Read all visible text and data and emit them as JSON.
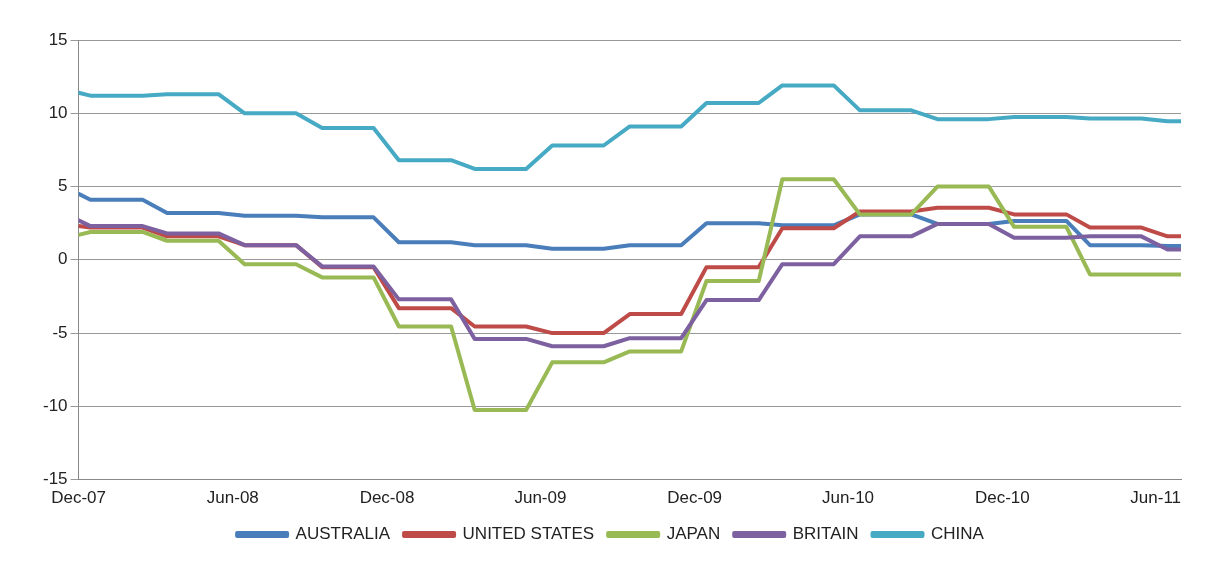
{
  "chart_data": {
    "type": "line",
    "x": [
      "2007-12-01",
      "2007-12-15",
      "2008-01-15",
      "2008-02-15",
      "2008-03-15",
      "2008-04-15",
      "2008-05-15",
      "2008-06-15",
      "2008-07-15",
      "2008-08-15",
      "2008-09-15",
      "2008-10-15",
      "2008-11-15",
      "2008-12-15",
      "2009-01-15",
      "2009-02-15",
      "2009-03-15",
      "2009-04-15",
      "2009-05-15",
      "2009-06-15",
      "2009-07-15",
      "2009-08-15",
      "2009-09-15",
      "2009-10-15",
      "2009-11-15",
      "2009-12-15",
      "2010-01-15",
      "2010-02-15",
      "2010-03-15",
      "2010-04-15",
      "2010-05-15",
      "2010-06-15",
      "2010-07-15",
      "2010-08-15",
      "2010-09-15",
      "2010-10-15",
      "2010-11-15",
      "2010-12-15",
      "2011-01-15",
      "2011-02-15",
      "2011-03-15",
      "2011-04-15",
      "2011-05-15",
      "2011-06-15",
      "2011-07-01"
    ],
    "series": [
      {
        "name": "AUSTRALIA",
        "color": "#4a7ebb",
        "values": [
          4.5,
          4.1,
          4.1,
          4.1,
          3.2,
          3.2,
          3.2,
          3.0,
          3.0,
          3.0,
          2.9,
          2.9,
          2.9,
          1.2,
          1.2,
          1.2,
          1.0,
          1.0,
          1.0,
          0.75,
          0.75,
          0.75,
          1.0,
          1.0,
          1.0,
          2.5,
          2.5,
          2.5,
          2.35,
          2.35,
          2.35,
          3.1,
          3.1,
          3.1,
          2.45,
          2.45,
          2.45,
          2.65,
          2.65,
          2.65,
          1.0,
          1.0,
          1.0,
          0.95,
          0.95
        ]
      },
      {
        "name": "UNITED STATES",
        "color": "#be4b48",
        "values": [
          2.3,
          2.2,
          2.2,
          2.2,
          1.6,
          1.6,
          1.6,
          1.0,
          1.0,
          1.0,
          -0.5,
          -0.5,
          -0.5,
          -3.3,
          -3.3,
          -3.3,
          -4.55,
          -4.55,
          -4.55,
          -5.0,
          -5.0,
          -5.0,
          -3.7,
          -3.7,
          -3.7,
          -0.5,
          -0.5,
          -0.5,
          2.15,
          2.15,
          2.15,
          3.3,
          3.3,
          3.3,
          3.55,
          3.55,
          3.55,
          3.1,
          3.1,
          3.1,
          2.2,
          2.2,
          2.2,
          1.6,
          1.6
        ]
      },
      {
        "name": "JAPAN",
        "color": "#98b954",
        "values": [
          1.7,
          1.9,
          1.9,
          1.9,
          1.3,
          1.3,
          1.3,
          -0.3,
          -0.3,
          -0.3,
          -1.2,
          -1.2,
          -1.2,
          -4.55,
          -4.55,
          -4.55,
          -10.25,
          -10.25,
          -10.25,
          -7.0,
          -7.0,
          -7.0,
          -6.25,
          -6.25,
          -6.25,
          -1.45,
          -1.45,
          -1.45,
          5.5,
          5.5,
          5.5,
          3.1,
          3.1,
          3.1,
          5.0,
          5.0,
          5.0,
          2.25,
          2.25,
          2.25,
          -1.0,
          -1.0,
          -1.0,
          -1.0,
          -1.0
        ]
      },
      {
        "name": "BRITAIN",
        "color": "#7d60a0",
        "values": [
          2.7,
          2.3,
          2.3,
          2.3,
          1.8,
          1.8,
          1.8,
          1.0,
          1.0,
          1.0,
          -0.45,
          -0.45,
          -0.45,
          -2.7,
          -2.7,
          -2.7,
          -5.4,
          -5.4,
          -5.4,
          -5.9,
          -5.9,
          -5.9,
          -5.35,
          -5.35,
          -5.35,
          -2.75,
          -2.75,
          -2.75,
          -0.3,
          -0.3,
          -0.3,
          1.6,
          1.6,
          1.6,
          2.45,
          2.45,
          2.45,
          1.5,
          1.5,
          1.5,
          1.6,
          1.6,
          1.6,
          0.7,
          0.7
        ]
      },
      {
        "name": "CHINA",
        "color": "#46aac5",
        "values": [
          11.4,
          11.2,
          11.2,
          11.2,
          11.3,
          11.3,
          11.3,
          10.0,
          10.0,
          10.0,
          9.0,
          9.0,
          9.0,
          6.8,
          6.8,
          6.8,
          6.2,
          6.2,
          6.2,
          7.8,
          7.8,
          7.8,
          9.1,
          9.1,
          9.1,
          10.7,
          10.7,
          10.7,
          11.9,
          11.9,
          11.9,
          10.2,
          10.2,
          10.2,
          9.6,
          9.6,
          9.6,
          9.75,
          9.75,
          9.75,
          9.65,
          9.65,
          9.65,
          9.45,
          9.45
        ]
      }
    ],
    "xlim": [
      "2007-12-01",
      "2011-07-01"
    ],
    "xticks": [
      {
        "value": "2007-12-01",
        "label": "Dec-07"
      },
      {
        "value": "2008-06-01",
        "label": "Jun-08"
      },
      {
        "value": "2008-12-01",
        "label": "Dec-08"
      },
      {
        "value": "2009-06-01",
        "label": "Jun-09"
      },
      {
        "value": "2009-12-01",
        "label": "Dec-09"
      },
      {
        "value": "2010-06-01",
        "label": "Jun-10"
      },
      {
        "value": "2010-12-01",
        "label": "Dec-10"
      },
      {
        "value": "2011-06-01",
        "label": "Jun-11"
      }
    ],
    "ylim": [
      -15,
      15
    ],
    "yticks": [
      -15,
      -10,
      -5,
      0,
      5,
      10,
      15
    ],
    "grid": "y",
    "legend": "bottom",
    "marker": "none",
    "line_style": "solid"
  }
}
